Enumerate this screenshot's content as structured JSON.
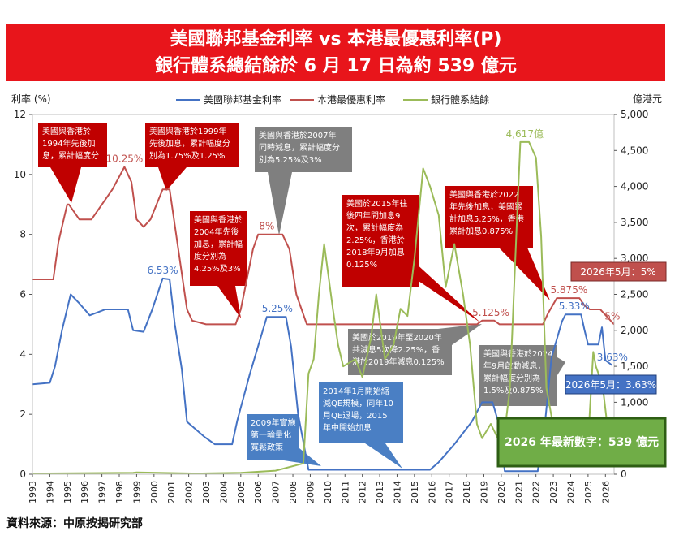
{
  "title": {
    "line1": "美國聯邦基金利率 vs 本港最優惠利率(P)",
    "line2": "銀行體系總結餘於 6 月 17 日為約 539 億元"
  },
  "source": "資料來源：中原按揭研究部",
  "chart_data": {
    "type": "line",
    "ylabel_left": "利率 (%)",
    "ylabel_right": "億港元",
    "ylim_left": [
      0,
      12
    ],
    "ylim_right": [
      0,
      5000
    ],
    "yticks_left": [
      "0",
      "2",
      "4",
      "6",
      "8",
      "10",
      "12"
    ],
    "yticks_right": [
      "0",
      "500",
      "1,000",
      "1,500",
      "2,000",
      "2,500",
      "3,000",
      "3,500",
      "4,000",
      "4,500",
      "5,000"
    ],
    "xlim": [
      1993,
      2026.5
    ],
    "xticks": [
      "1993",
      "1994",
      "1995",
      "1996",
      "1997",
      "1998",
      "1999",
      "2000",
      "2001",
      "2002",
      "2003",
      "2004",
      "2005",
      "2006",
      "2007",
      "2008",
      "2009",
      "2010",
      "2011",
      "2012",
      "2013",
      "2014",
      "2015",
      "2016",
      "2017",
      "2018",
      "2019",
      "2020",
      "2021",
      "2022",
      "2023",
      "2024",
      "2025",
      "2026"
    ],
    "legend": [
      "美國聯邦基金利率",
      "本港最優惠利率",
      "銀行體系結餘"
    ],
    "legend_position": "top",
    "series": [
      {
        "name": "美國聯邦基金利率",
        "color": "#4472c4",
        "axis": "left",
        "points": [
          [
            1993,
            3.0
          ],
          [
            1994.0,
            3.05
          ],
          [
            1994.3,
            3.6
          ],
          [
            1994.7,
            4.8
          ],
          [
            1995.2,
            6.0
          ],
          [
            1995.7,
            5.7
          ],
          [
            1996.3,
            5.3
          ],
          [
            1997.2,
            5.5
          ],
          [
            1998.5,
            5.5
          ],
          [
            1998.8,
            4.8
          ],
          [
            1999.4,
            4.75
          ],
          [
            1999.9,
            5.5
          ],
          [
            2000.5,
            6.53
          ],
          [
            2000.9,
            6.5
          ],
          [
            2001.2,
            5.0
          ],
          [
            2001.6,
            3.5
          ],
          [
            2001.9,
            1.75
          ],
          [
            2002.9,
            1.25
          ],
          [
            2003.5,
            1.0
          ],
          [
            2004.5,
            1.0
          ],
          [
            2004.8,
            1.8
          ],
          [
            2005.5,
            3.3
          ],
          [
            2006.5,
            5.25
          ],
          [
            2007.6,
            5.25
          ],
          [
            2007.9,
            4.25
          ],
          [
            2008.3,
            2.0
          ],
          [
            2008.9,
            0.15
          ],
          [
            2015.9,
            0.15
          ],
          [
            2016.4,
            0.4
          ],
          [
            2017.3,
            1.0
          ],
          [
            2018.3,
            1.75
          ],
          [
            2018.9,
            2.4
          ],
          [
            2019.5,
            2.4
          ],
          [
            2019.9,
            1.6
          ],
          [
            2020.2,
            0.1
          ],
          [
            2022.1,
            0.1
          ],
          [
            2022.5,
            1.6
          ],
          [
            2022.9,
            3.9
          ],
          [
            2023.5,
            5.1
          ],
          [
            2023.7,
            5.33
          ],
          [
            2024.6,
            5.33
          ],
          [
            2024.8,
            4.8
          ],
          [
            2025.0,
            4.33
          ],
          [
            2025.6,
            4.33
          ],
          [
            2025.8,
            4.9
          ],
          [
            2026.0,
            3.8
          ],
          [
            2026.4,
            3.63
          ]
        ]
      },
      {
        "name": "本港最優惠利率",
        "color": "#c0504d",
        "axis": "left",
        "points": [
          [
            1993,
            6.5
          ],
          [
            1994.2,
            6.5
          ],
          [
            1994.5,
            7.75
          ],
          [
            1995.0,
            9.0
          ],
          [
            1995.1,
            9.0
          ],
          [
            1995.7,
            8.5
          ],
          [
            1996.4,
            8.5
          ],
          [
            1997.6,
            9.5
          ],
          [
            1998.3,
            10.25
          ],
          [
            1998.7,
            9.75
          ],
          [
            1999.0,
            8.5
          ],
          [
            1999.4,
            8.25
          ],
          [
            1999.8,
            8.5
          ],
          [
            2000.5,
            9.5
          ],
          [
            2000.9,
            9.5
          ],
          [
            2001.4,
            7.5
          ],
          [
            2001.9,
            5.5
          ],
          [
            2002.2,
            5.125
          ],
          [
            2003.0,
            5.0
          ],
          [
            2004.7,
            5.0
          ],
          [
            2005.0,
            5.5
          ],
          [
            2005.7,
            7.5
          ],
          [
            2006.0,
            8.0
          ],
          [
            2007.4,
            8.0
          ],
          [
            2007.8,
            7.5
          ],
          [
            2008.2,
            6.0
          ],
          [
            2008.8,
            5.0
          ],
          [
            2018.6,
            5.0
          ],
          [
            2018.9,
            5.125
          ],
          [
            2019.6,
            5.125
          ],
          [
            2019.9,
            5.0
          ],
          [
            2022.4,
            5.0
          ],
          [
            2022.7,
            5.375
          ],
          [
            2023.2,
            5.875
          ],
          [
            2024.5,
            5.875
          ],
          [
            2024.8,
            5.625
          ],
          [
            2025.1,
            5.5
          ],
          [
            2025.7,
            5.5
          ],
          [
            2026.1,
            5.25
          ],
          [
            2026.5,
            5.0
          ]
        ]
      },
      {
        "name": "銀行體系結餘",
        "color": "#9bbb59",
        "axis": "right",
        "points": [
          [
            1993,
            10
          ],
          [
            1998.8,
            20
          ],
          [
            1999.0,
            25
          ],
          [
            2002.5,
            10
          ],
          [
            2005.0,
            20
          ],
          [
            2007.0,
            50
          ],
          [
            2008.6,
            150
          ],
          [
            2008.9,
            1400
          ],
          [
            2009.2,
            1600
          ],
          [
            2009.5,
            2500
          ],
          [
            2009.8,
            3200
          ],
          [
            2010.3,
            2300
          ],
          [
            2010.6,
            1800
          ],
          [
            2010.9,
            1500
          ],
          [
            2011.6,
            1600
          ],
          [
            2012.0,
            1350
          ],
          [
            2012.5,
            1900
          ],
          [
            2012.8,
            2500
          ],
          [
            2013.3,
            1600
          ],
          [
            2013.8,
            1800
          ],
          [
            2014.2,
            2300
          ],
          [
            2014.6,
            2200
          ],
          [
            2015.0,
            3000
          ],
          [
            2015.5,
            4250
          ],
          [
            2015.9,
            4000
          ],
          [
            2016.4,
            3600
          ],
          [
            2016.8,
            2600
          ],
          [
            2017.3,
            3200
          ],
          [
            2017.8,
            2500
          ],
          [
            2018.2,
            1800
          ],
          [
            2018.6,
            700
          ],
          [
            2018.9,
            500
          ],
          [
            2019.4,
            700
          ],
          [
            2019.8,
            500
          ],
          [
            2020.2,
            600
          ],
          [
            2020.5,
            1200
          ],
          [
            2020.9,
            3500
          ],
          [
            2021.1,
            4617
          ],
          [
            2021.6,
            4617
          ],
          [
            2022.0,
            4400
          ],
          [
            2022.3,
            3300
          ],
          [
            2022.6,
            1200
          ],
          [
            2022.9,
            800
          ],
          [
            2023.3,
            500
          ],
          [
            2023.8,
            450
          ],
          [
            2024.3,
            420
          ],
          [
            2025.0,
            450
          ],
          [
            2025.3,
            1700
          ],
          [
            2025.45,
            1500
          ],
          [
            2025.6,
            1400
          ],
          [
            2025.9,
            1100
          ],
          [
            2026.1,
            700
          ],
          [
            2026.4,
            539
          ]
        ]
      }
    ],
    "data_labels": [
      {
        "text": "10.25%",
        "x": 1998.3,
        "y": 10.25,
        "color": "#c0504d"
      },
      {
        "text": "8%",
        "x": 2006.5,
        "y": 8.0,
        "color": "#c0504d"
      },
      {
        "text": "5.125%",
        "x": 2019.4,
        "y": 5.125,
        "color": "#c0504d"
      },
      {
        "text": "5.875%",
        "x": 2023.9,
        "y": 5.875,
        "color": "#c0504d"
      },
      {
        "text": "5%",
        "x": 2026.4,
        "y": 5.0,
        "color": "#c0504d"
      },
      {
        "text": "6.53%",
        "x": 2000.5,
        "y": 6.53,
        "color": "#4472c4"
      },
      {
        "text": "5.25%",
        "x": 2007.1,
        "y": 5.25,
        "color": "#4472c4"
      },
      {
        "text": "5.33%",
        "x": 2024.2,
        "y": 5.33,
        "color": "#4472c4"
      },
      {
        "text": "3.63%",
        "x": 2026.4,
        "y": 3.63,
        "color": "#4472c4"
      },
      {
        "text": "4,617億",
        "x": 2021.35,
        "y_right": 4617,
        "color": "#9bbb59"
      }
    ],
    "annotations": [
      {
        "kind": "red",
        "lines": [
          "美國與香港於",
          "1994年先後加",
          "息，累計幅度分"
        ]
      },
      {
        "kind": "red",
        "lines": [
          "美國與香港於1999年",
          "先後加息，累計幅度分",
          "別為1.75%及1.25%"
        ]
      },
      {
        "kind": "red",
        "lines": [
          "美國與香港於",
          "2004年先後",
          "加息，累計幅",
          "度分別為",
          "4.25%及3%"
        ]
      },
      {
        "kind": "grey",
        "lines": [
          "美國與香港於2007年",
          "同時減息，累計幅度分",
          "別為5.25%及3%"
        ]
      },
      {
        "kind": "red",
        "lines": [
          "美國於2015年往",
          "後四年間加息9",
          "次，累計幅度為",
          "2.25%，香港於",
          "2018年9月加息",
          "0.125%"
        ]
      },
      {
        "kind": "red",
        "lines": [
          "美國與香港於2022",
          "年先後加息，美國累",
          "計加息5.25%，香港",
          "累計加息0.875%"
        ]
      },
      {
        "kind": "grey",
        "lines": [
          "美國於2019年至2020年",
          "共減息5次降2.25%，香",
          "港於2019年減息0.125%"
        ]
      },
      {
        "kind": "blue",
        "lines": [
          "2014年1月開始縮",
          "減QE規模，同年10",
          "月QE退場，2015",
          "年中開始加息"
        ]
      },
      {
        "kind": "blue",
        "lines": [
          "2009年實施",
          "第一輪量化",
          "寬鬆政策"
        ]
      },
      {
        "kind": "grey",
        "lines": [
          "美國與香港於2024",
          "年9月啟動減息，",
          "累計幅度分別為",
          "1.5%及0.875%"
        ]
      }
    ],
    "callouts": {
      "prime_may": "2026年5月：5%",
      "fed_may": "2026年5月：3.63%",
      "latest": "2026 年最新數字：539 億元"
    }
  }
}
